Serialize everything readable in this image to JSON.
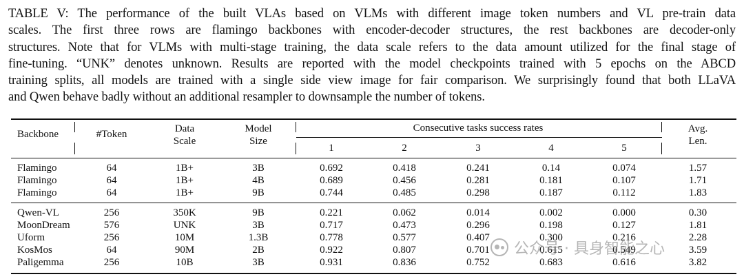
{
  "caption": {
    "lines": [
      "TABLE V: The performance of the built VLAs based on VLMs with different image token numbers and VL pre-train data",
      "scales. The first three rows are flamingo backbones with encoder-decoder structures, the rest backbones are decoder-only",
      "structures. Note that for VLMs with multi-stage training, the data scale refers to the data amount utilized for the final stage of",
      "fine-tuning. “UNK” denotes unknown. Results are reported with the model checkpoints trained with 5 epochs on the ABCD",
      "training splits, all models are trained with a single side view image for fair comparison. We surprisingly found that both LLaVA",
      "and Qwen behave badly without an additional resampler to downsample the number of tokens."
    ]
  },
  "table": {
    "headers": {
      "backbone": "Backbone",
      "token": "#Token",
      "data_scale_1": "Data",
      "data_scale_2": "Scale",
      "model_size_1": "Model",
      "model_size_2": "Size",
      "group": "Consecutive tasks success rates",
      "tasks": [
        "1",
        "2",
        "3",
        "4",
        "5"
      ],
      "avg_1": "Avg.",
      "avg_2": "Len."
    },
    "rows": [
      [
        "Flamingo",
        "64",
        "1B+",
        "3B",
        "0.692",
        "0.418",
        "0.241",
        "0.14",
        "0.074",
        "1.57"
      ],
      [
        "Flamingo",
        "64",
        "1B+",
        "4B",
        "0.689",
        "0.456",
        "0.281",
        "0.181",
        "0.107",
        "1.71"
      ],
      [
        "Flamingo",
        "64",
        "1B+",
        "9B",
        "0.744",
        "0.485",
        "0.298",
        "0.187",
        "0.112",
        "1.83"
      ],
      [
        "Qwen-VL",
        "256",
        "350K",
        "9B",
        "0.221",
        "0.062",
        "0.014",
        "0.002",
        "0.000",
        "0.30"
      ],
      [
        "MoonDream",
        "576",
        "UNK",
        "3B",
        "0.717",
        "0.473",
        "0.296",
        "0.198",
        "0.127",
        "1.81"
      ],
      [
        "Uform",
        "256",
        "10M",
        "1.3B",
        "0.778",
        "0.577",
        "0.407",
        "0.300",
        "0.216",
        "2.28"
      ],
      [
        "KosMos",
        "64",
        "90M",
        "2B",
        "0.922",
        "0.807",
        "0.701",
        "0.615",
        "0.549",
        "3.59"
      ],
      [
        "Paligemma",
        "256",
        "10B",
        "3B",
        "0.931",
        "0.836",
        "0.752",
        "0.683",
        "0.616",
        "3.82"
      ]
    ]
  },
  "watermark": {
    "text": "公众号 · 具身智能之心",
    "icon": "wechat-logo-icon"
  }
}
